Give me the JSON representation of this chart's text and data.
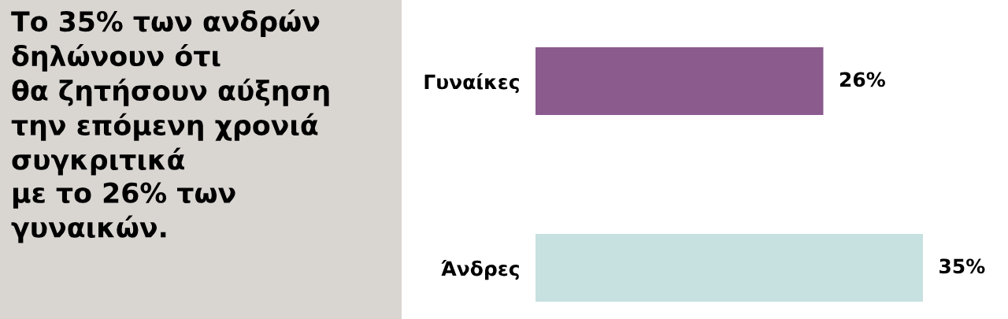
{
  "chart_data": {
    "type": "bar",
    "orientation": "horizontal",
    "title": "Το 35% των ανδρών\nδηλώνουν ότι\nθα ζητήσουν αύξηση\nτην επόμενη χρονιά\nσυγκριτικά\nμε το 26% των\nγυναικών.",
    "categories": [
      "Γυναίκες",
      "Άνδρες"
    ],
    "values": [
      26,
      35
    ],
    "colors": [
      "#8b5b8e",
      "#c6e1df"
    ],
    "value_labels": [
      "26%",
      "35%"
    ],
    "tick_labels": "y"
  }
}
